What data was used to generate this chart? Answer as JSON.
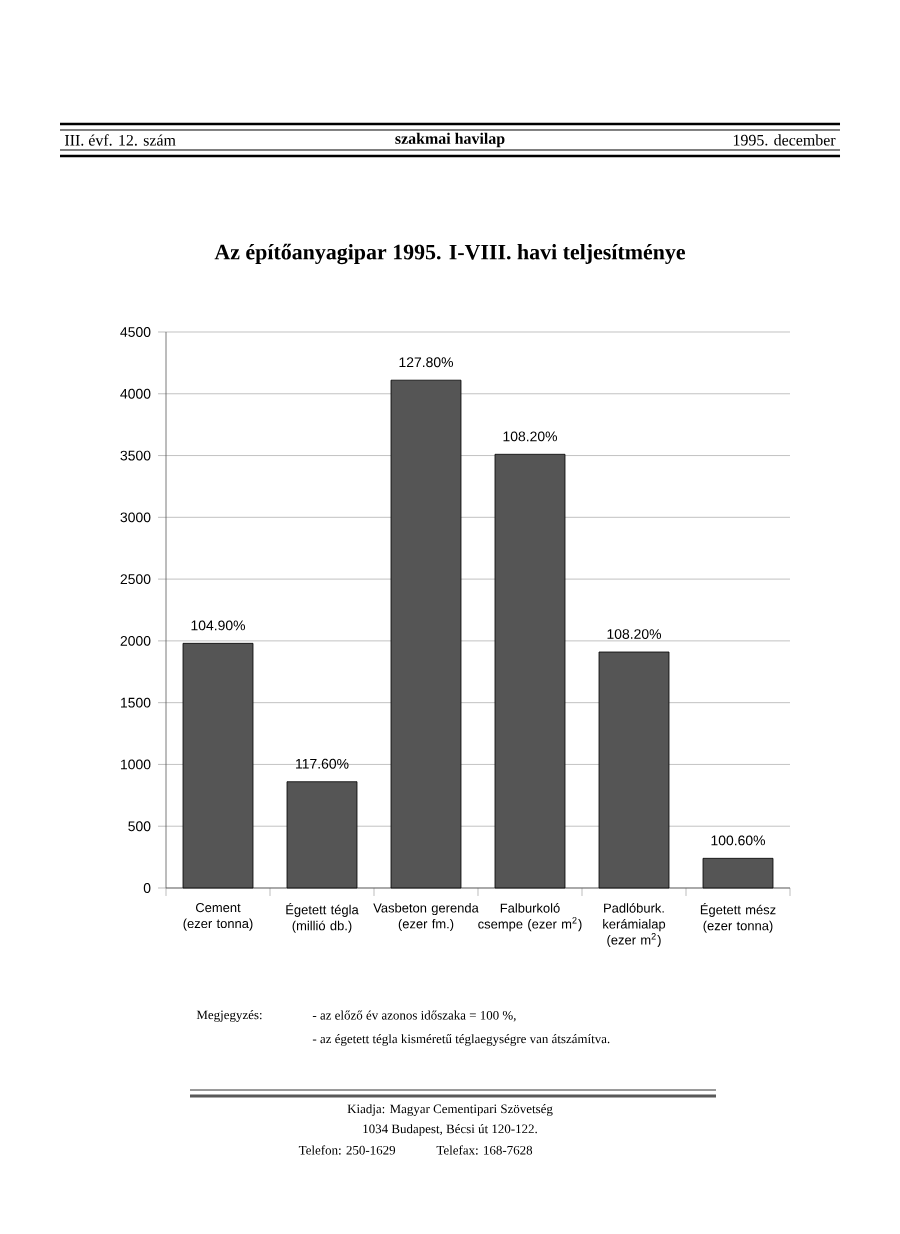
{
  "chart_data": {
    "type": "bar",
    "title": "Az építőanyagipar 1995. I-VIII. havi teljesítménye",
    "categories": [
      "Cement (ezer tonna)",
      "Égetett tégla (millió db.)",
      "Vasbeton gerenda (ezer fm.)",
      "Falburkoló csempe (ezer m$^{2}$)",
      "Padlóburk. kerámialap (ezer m$^{2}$)",
      "Égetett mész (ezer tonna)"
    ],
    "values": [
      1980,
      860,
      4110,
      3510,
      1910,
      240
    ],
    "color": "#555555",
    "ylim": [
      0,
      4500
    ],
    "yticks": [
      0,
      500,
      1000,
      1500,
      2000,
      2500,
      3000,
      3500,
      4000,
      4500
    ],
    "grid": "y",
    "annotations": [
      "III. évf. 12. szám",
      "szakmai havilap",
      "1995. december",
      "Megjegyzés:",
      "- az előző év azonos időszaka = 100 %,",
      "- az égetett tégla kisméretű téglaegységre van átszámítva.",
      "Kiadja: Magyar Cementipari Szövetség",
      "1034 Budapest, Bécsi út 120-122.",
      "Telefon: 250-1629",
      "Telefax: 168-7628",
      {
        "text": "104.90%",
        "x": "Cement (ezer tonna)",
        "y": 1980
      },
      {
        "text": "117.60%",
        "x": "Égetett tégla (millió db.)",
        "y": 860
      },
      {
        "text": "127.80%",
        "x": "Vasbeton gerenda (ezer fm.)",
        "y": 4110
      },
      {
        "text": "108.20%",
        "x": "Falburkoló csempe (ezer m$^{2}$)",
        "y": 3510
      },
      {
        "text": "108.20%",
        "x": "Padlóburk. kerámialap (ezer m$^{2}$)",
        "y": 1910
      },
      {
        "text": "100.60%",
        "x": "Égetett mész (ezer tonna)",
        "y": 240
      }
    ]
  }
}
